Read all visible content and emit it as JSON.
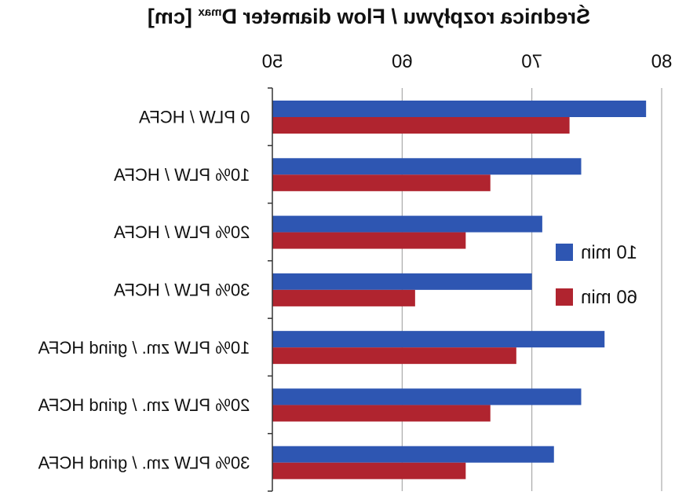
{
  "chart_data": {
    "type": "bar",
    "orientation": "horizontal",
    "mirrored": true,
    "title": "Średnica rozpływu / Flow diameter D",
    "title_sup": "max",
    "title_unit": "[cm]",
    "categories": [
      "0 PLW / HCFA",
      "10% PLW / HCFA",
      "20% PLW / HCFA",
      "30% PLW / HCFA",
      "10% PLW zm. / grind HCFA",
      "20% PLW zm. / grind HCFA",
      "30% PLW zm. / grind HCFA"
    ],
    "series": [
      {
        "name": "10 min",
        "color": "#2e56b2",
        "values": [
          78.8,
          73.8,
          70.8,
          70.0,
          75.6,
          73.8,
          71.7
        ]
      },
      {
        "name": "60 min",
        "color": "#b0242f",
        "values": [
          72.9,
          66.8,
          64.9,
          61.0,
          68.8,
          66.8,
          64.9
        ]
      }
    ],
    "xlim": [
      50,
      80
    ],
    "xticks": [
      50,
      60,
      70,
      80
    ],
    "xtick_labels": [
      "50",
      "60",
      "70",
      "80"
    ],
    "grid": true,
    "legend_position": "right"
  }
}
